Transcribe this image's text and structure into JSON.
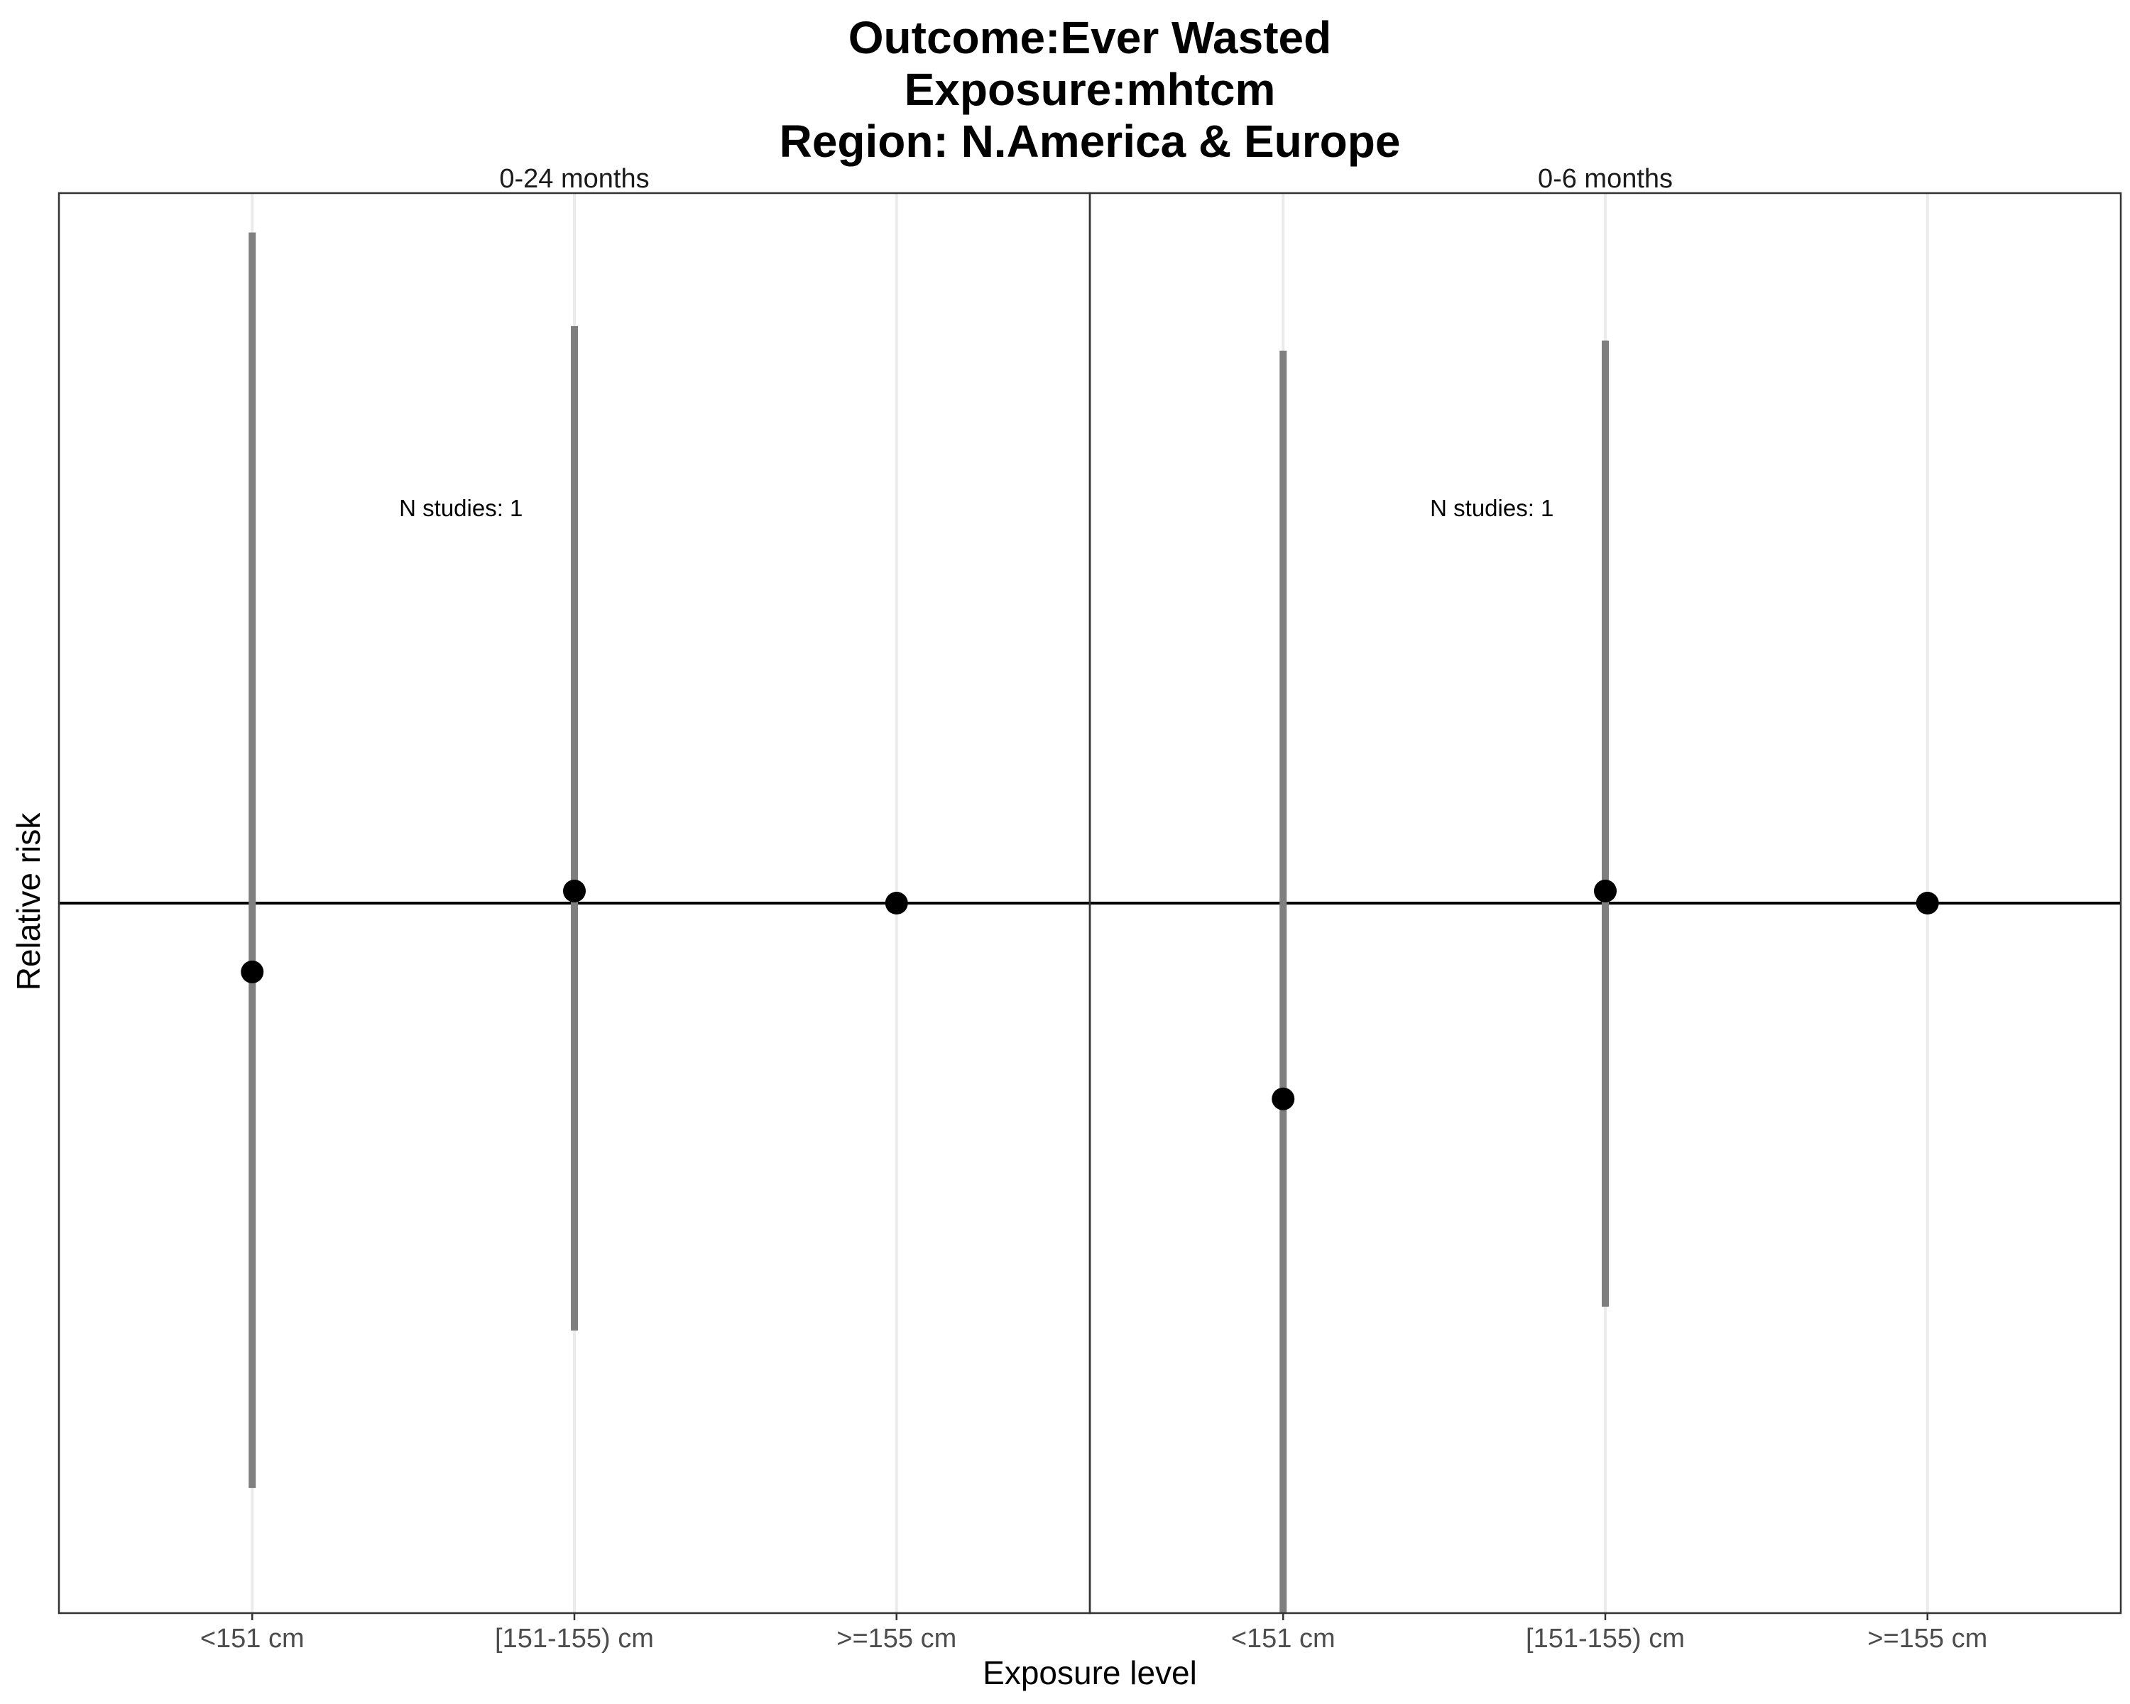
{
  "chart_data": {
    "type": "scatter",
    "title_lines": [
      "Outcome:Ever Wasted",
      "Exposure:mhtcm",
      "Region: N.America & Europe"
    ],
    "xlabel": "Exposure level",
    "ylabel": "Relative risk",
    "categories": [
      "<151 cm",
      "[151-155) cm",
      ">=155 cm"
    ],
    "reference_line": 1.0,
    "ylim": [
      0.1,
      10.0
    ],
    "y_scale": "log",
    "y_ticks_shown": false,
    "grid": "vertical-major",
    "panels": [
      {
        "label": "0-24 months",
        "annotation": "N studies: 1",
        "points": [
          {
            "category": "<151 cm",
            "estimate": 0.8,
            "ci_low": 0.15,
            "ci_high": 8.8
          },
          {
            "category": "[151-155) cm",
            "estimate": 1.04,
            "ci_low": 0.25,
            "ci_high": 6.5
          },
          {
            "category": ">=155 cm",
            "estimate": 1.0,
            "ci_low": null,
            "ci_high": null
          }
        ]
      },
      {
        "label": "0-6 months",
        "annotation": "N studies: 1",
        "points": [
          {
            "category": "<151 cm",
            "estimate": 0.53,
            "ci_low": 0.1,
            "ci_high": 6.0
          },
          {
            "category": "[151-155) cm",
            "estimate": 1.04,
            "ci_low": 0.27,
            "ci_high": 6.2
          },
          {
            "category": ">=155 cm",
            "estimate": 1.0,
            "ci_low": null,
            "ci_high": null
          }
        ]
      }
    ],
    "colors": {
      "point": "#000000",
      "ci": "#7f7f7f",
      "reference": "#000000",
      "grid": "#ebebeb",
      "panel_border": "#333333"
    }
  }
}
